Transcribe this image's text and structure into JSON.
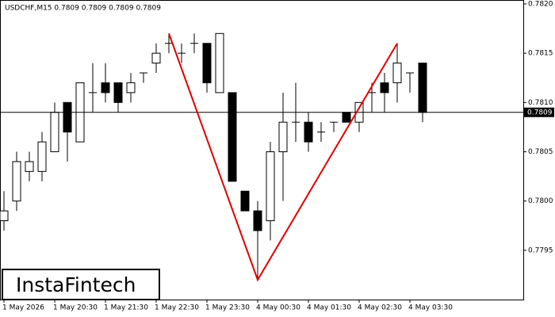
{
  "chart_data": {
    "type": "candlestick",
    "title": "USDCHF,M15  0.7809 0.7809 0.7809 0.7809",
    "logo": "InstaFintech",
    "categories": [
      "1 May 2026",
      null,
      null,
      null,
      "1 May 20:30",
      null,
      null,
      null,
      "1 May 21:30",
      null,
      null,
      null,
      "1 May 22:30",
      null,
      null,
      null,
      "1 May 23:30",
      null,
      null,
      null,
      "4 May 00:30",
      null,
      null,
      null,
      "4 May 01:30",
      null,
      null,
      null,
      "4 May 02:30",
      null,
      null,
      null,
      "4 May 03:30",
      null
    ],
    "open": [
      0.7798,
      0.78,
      0.7803,
      0.7803,
      0.7805,
      0.781,
      0.7806,
      0.7811,
      0.7812,
      0.7812,
      0.7811,
      0.7813,
      0.7814,
      0.7816,
      0.7815,
      0.7816,
      0.7816,
      0.7811,
      0.7811,
      0.7801,
      0.7799,
      0.7798,
      0.7805,
      0.7808,
      0.7808,
      0.7807,
      0.7808,
      0.7809,
      0.7808,
      0.7811,
      0.7812,
      0.7812,
      0.7813,
      0.7814
    ],
    "high": [
      0.7801,
      0.7805,
      0.7805,
      0.7807,
      0.781,
      0.781,
      0.7812,
      0.7814,
      0.7814,
      0.7812,
      0.7813,
      0.7813,
      0.7816,
      0.7817,
      0.7816,
      0.7817,
      0.7816,
      0.7817,
      0.7811,
      0.7801,
      0.78,
      0.7806,
      0.7811,
      0.7812,
      0.7809,
      0.7808,
      0.7808,
      0.7809,
      0.781,
      0.7812,
      0.7813,
      0.7816,
      0.7813,
      0.7814
    ],
    "low": [
      0.7797,
      0.7799,
      0.7802,
      0.7802,
      0.7805,
      0.7804,
      0.7806,
      0.7809,
      0.781,
      0.7809,
      0.781,
      0.7812,
      0.7813,
      0.7815,
      0.7814,
      0.7815,
      0.7811,
      0.7811,
      0.7802,
      0.7799,
      0.7792,
      0.7796,
      0.78,
      0.7806,
      0.7805,
      0.7806,
      0.7807,
      0.7808,
      0.7807,
      0.7809,
      0.7809,
      0.781,
      0.7811,
      0.7808
    ],
    "close": [
      0.7799,
      0.7804,
      0.7804,
      0.7806,
      0.7809,
      0.7807,
      0.7812,
      0.7811,
      0.7811,
      0.781,
      0.7812,
      0.7813,
      0.7815,
      0.7816,
      0.7815,
      0.7816,
      0.7812,
      0.7817,
      0.7802,
      0.7799,
      0.7797,
      0.7805,
      0.7808,
      0.7808,
      0.7806,
      0.7807,
      0.7808,
      0.7808,
      0.781,
      0.7811,
      0.7811,
      0.7814,
      0.7813,
      0.7809
    ],
    "ylim": [
      0.779,
      0.78204
    ],
    "yticks": [
      0.7795,
      {
        "value": 0.78,
        "label": "0.7800"
      },
      0.7805,
      {
        "value": 0.781,
        "label": "0.7810"
      },
      0.7815,
      {
        "value": 0.782,
        "label": "0.7820"
      }
    ],
    "last_price": 0.7809,
    "pattern": {
      "color": "#e00000",
      "x": [
        13,
        20,
        31
      ],
      "y": [
        0.7817,
        0.7792,
        0.7816
      ]
    }
  }
}
